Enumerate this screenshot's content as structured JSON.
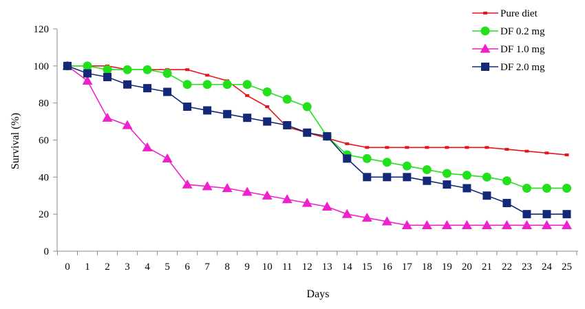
{
  "chart_data": {
    "type": "line",
    "title": "",
    "xlabel": "Days",
    "ylabel": "Survival (%)",
    "ylim": [
      0,
      120
    ],
    "ytick_step": 20,
    "yticks": [
      "0",
      "20",
      "40",
      "60",
      "80",
      "100",
      "120"
    ],
    "grid": false,
    "legend_position": "top-right",
    "x": [
      0,
      1,
      2,
      3,
      4,
      5,
      6,
      7,
      8,
      9,
      10,
      11,
      12,
      13,
      14,
      15,
      16,
      17,
      18,
      19,
      20,
      21,
      22,
      23,
      24,
      25
    ],
    "xtick_labels": [
      "0",
      "1",
      "2",
      "3",
      "4",
      "5",
      "6",
      "7",
      "8",
      "9",
      "10",
      "11",
      "12",
      "13",
      "14",
      "15",
      "16",
      "17",
      "18",
      "19",
      "20",
      "21",
      "22",
      "23",
      "24",
      "25"
    ],
    "series": [
      {
        "name": "Pure diet",
        "color": "#e8141c",
        "marker": "small-square",
        "values": [
          100,
          100,
          100,
          98,
          98,
          98,
          98,
          95,
          92,
          84,
          78,
          67,
          64,
          61,
          58,
          56,
          56,
          56,
          56,
          56,
          56,
          56,
          55,
          54,
          53,
          52
        ]
      },
      {
        "name": "DF 0.2 mg",
        "color": "#22e01c",
        "marker": "circle",
        "values": [
          100,
          100,
          98,
          98,
          98,
          96,
          90,
          90,
          90,
          90,
          86,
          82,
          78,
          62,
          52,
          50,
          48,
          46,
          44,
          42,
          41,
          40,
          38,
          34,
          34,
          34
        ]
      },
      {
        "name": "DF 1.0 mg",
        "color": "#ee22cc",
        "marker": "triangle",
        "values": [
          100,
          92,
          72,
          68,
          56,
          50,
          36,
          35,
          34,
          32,
          30,
          28,
          26,
          24,
          20,
          18,
          16,
          14,
          14,
          14,
          14,
          14,
          14,
          14,
          14,
          14
        ]
      },
      {
        "name": "DF 2.0 mg",
        "color": "#142878",
        "marker": "square",
        "values": [
          100,
          96,
          94,
          90,
          88,
          86,
          78,
          76,
          74,
          72,
          70,
          68,
          64,
          62,
          50,
          40,
          40,
          40,
          38,
          36,
          34,
          30,
          26,
          20,
          20,
          20
        ]
      }
    ]
  }
}
